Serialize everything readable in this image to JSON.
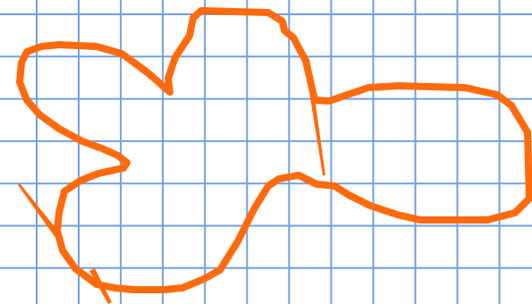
{
  "image": {
    "subject": "hand-drawn-freeform-outline",
    "colors": {
      "paper": "#ffffff",
      "grid": "#6f9fe6",
      "outline": "#ff6a0d"
    }
  }
}
